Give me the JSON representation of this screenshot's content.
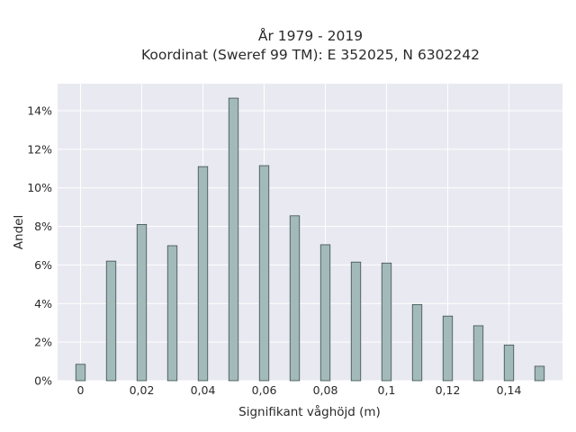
{
  "chart_data": {
    "type": "bar",
    "title": "År 1979 - 2019",
    "subtitle": "Koordinat (Sweref 99 TM): E 352025, N 6302242",
    "xlabel": "Signifikant våghöjd (m)",
    "ylabel": "Andel",
    "x": [
      0,
      0.01,
      0.02,
      0.03,
      0.04,
      0.05,
      0.06,
      0.07,
      0.08,
      0.09,
      0.1,
      0.11,
      0.12,
      0.13,
      0.14,
      0.15
    ],
    "values": [
      0.85,
      6.2,
      8.1,
      7.0,
      11.1,
      14.65,
      11.15,
      8.55,
      7.05,
      6.15,
      6.1,
      3.95,
      3.35,
      2.85,
      1.85,
      0.75
    ],
    "xticks": [
      0,
      0.02,
      0.04,
      0.06,
      0.08,
      0.1,
      0.12,
      0.14
    ],
    "xtick_labels": [
      "0",
      "0,02",
      "0,04",
      "0,06",
      "0,08",
      "0,1",
      "0,12",
      "0,14"
    ],
    "yticks": [
      0,
      2,
      4,
      6,
      8,
      10,
      12,
      14
    ],
    "ytick_labels": [
      "0%",
      "2%",
      "4%",
      "6%",
      "8%",
      "10%",
      "12%",
      "14%"
    ],
    "xlim": [
      -0.0075,
      0.1575
    ],
    "ylim": [
      0,
      15.4
    ],
    "grid": true,
    "colors": {
      "bar_fill": "#a3baba",
      "bar_stroke": "#3e4e4e",
      "plot_bg": "#e9e9f1",
      "grid": "#ffffff"
    }
  }
}
